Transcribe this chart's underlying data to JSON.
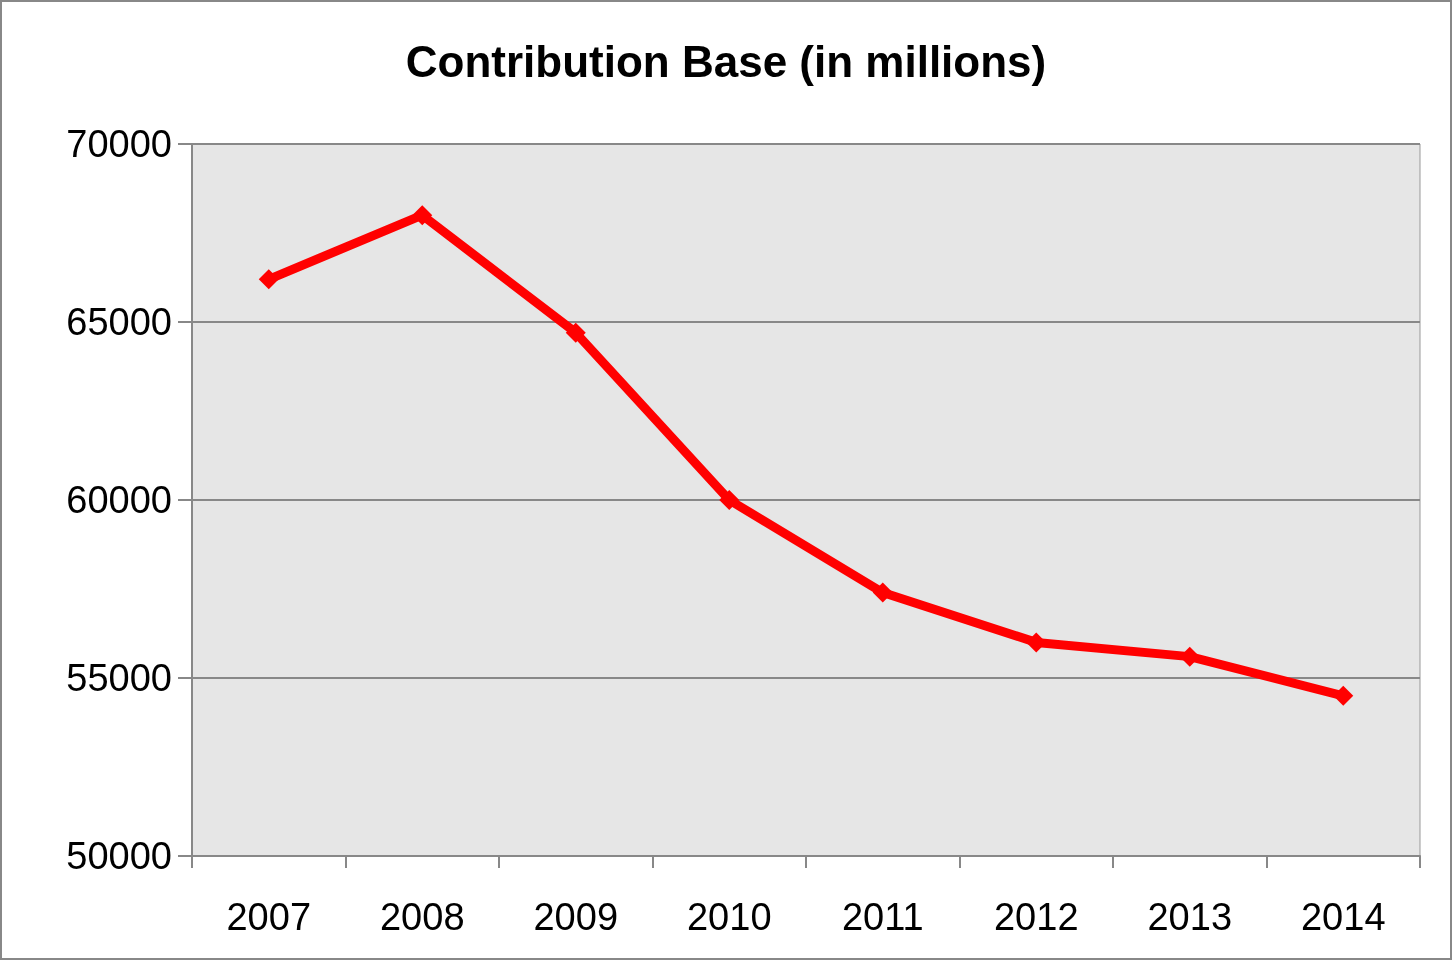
{
  "chart_data": {
    "type": "line",
    "title": "Contribution Base (in millions)",
    "categories": [
      "2007",
      "2008",
      "2009",
      "2010",
      "2011",
      "2012",
      "2013",
      "2014"
    ],
    "series": [
      {
        "color": "#ff0000",
        "values": [
          66200,
          68000,
          64700,
          60000,
          57400,
          56000,
          55600,
          54500
        ]
      }
    ],
    "ylim": [
      50000,
      70000
    ],
    "yticks": [
      50000,
      55000,
      60000,
      65000,
      70000
    ],
    "grid": "y",
    "marker": "diamond",
    "line_style": "solid"
  }
}
